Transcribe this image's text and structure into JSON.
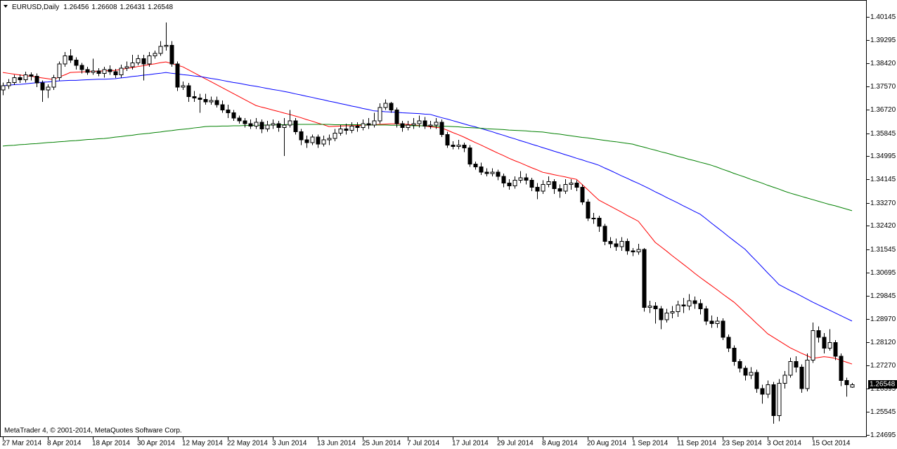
{
  "chart_data": {
    "type": "candlestick",
    "title": "EURUSD,Daily",
    "footer": "MetaTrader 4, © 2001-2014, MetaQuotes Software Corp.",
    "up_color": "#ffffff",
    "down_color": "#000000",
    "categories": [
      "27 Mar 2014",
      null,
      null,
      null,
      null,
      null,
      null,
      null,
      "8 Apr 2014",
      null,
      null,
      null,
      null,
      null,
      null,
      null,
      "18 Apr 2014",
      null,
      null,
      null,
      null,
      null,
      null,
      null,
      "30 Apr 2014",
      null,
      null,
      null,
      null,
      null,
      null,
      null,
      "12 May 2014",
      null,
      null,
      null,
      null,
      null,
      null,
      null,
      "22 May 2014",
      null,
      null,
      null,
      null,
      null,
      null,
      null,
      "3 Jun 2014",
      null,
      null,
      null,
      null,
      null,
      null,
      null,
      "13 Jun 2014",
      null,
      null,
      null,
      null,
      null,
      null,
      null,
      "25 Jun 2014",
      null,
      null,
      null,
      null,
      null,
      null,
      null,
      "7 Jul 2014",
      null,
      null,
      null,
      null,
      null,
      null,
      null,
      "17 Jul 2014",
      null,
      null,
      null,
      null,
      null,
      null,
      null,
      "29 Jul 2014",
      null,
      null,
      null,
      null,
      null,
      null,
      null,
      "8 Aug 2014",
      null,
      null,
      null,
      null,
      null,
      null,
      null,
      "20 Aug 2014",
      null,
      null,
      null,
      null,
      null,
      null,
      null,
      "1 Sep 2014",
      null,
      null,
      null,
      null,
      null,
      null,
      null,
      "11 Sep 2014",
      null,
      null,
      null,
      null,
      null,
      null,
      null,
      "23 Sep 2014",
      null,
      null,
      null,
      null,
      null,
      null,
      null,
      "3 Oct 2014",
      null,
      null,
      null,
      null,
      null,
      null,
      null,
      "15 Oct 2014",
      null,
      null,
      null,
      null,
      null,
      null,
      null
    ],
    "open": [
      1.3745,
      1.376,
      1.3772,
      1.379,
      1.3782,
      1.38,
      1.3795,
      1.377,
      1.3745,
      1.3755,
      1.379,
      1.384,
      1.387,
      1.3855,
      1.3835,
      1.382,
      1.381,
      1.3815,
      1.3805,
      1.382,
      1.3812,
      1.38,
      1.3825,
      1.383,
      1.3845,
      1.386,
      1.384,
      1.387,
      1.388,
      1.3905,
      1.391,
      1.384,
      1.3755,
      1.376,
      1.372,
      1.3715,
      1.371,
      1.37,
      1.3705,
      1.369,
      1.367,
      1.366,
      1.364,
      1.363,
      1.362,
      1.361,
      1.3625,
      1.36,
      1.3615,
      1.362,
      1.3605,
      1.3615,
      1.363,
      1.359,
      1.356,
      1.355,
      1.357,
      1.3545,
      1.356,
      1.3565,
      1.3585,
      1.36,
      1.3595,
      1.361,
      1.3605,
      1.362,
      1.3615,
      1.363,
      1.368,
      1.3695,
      1.367,
      1.362,
      1.3605,
      1.3615,
      1.362,
      1.363,
      1.361,
      1.3615,
      1.3625,
      1.358,
      1.354,
      1.3535,
      1.354,
      1.353,
      1.347,
      1.346,
      1.344,
      1.3435,
      1.344,
      1.3425,
      1.34,
      1.339,
      1.341,
      1.342,
      1.341,
      1.3385,
      1.337,
      1.3395,
      1.3405,
      1.338,
      1.337,
      1.3395,
      1.34,
      1.3385,
      1.333,
      1.327,
      1.327,
      1.324,
      1.3185,
      1.3175,
      1.3165,
      1.3185,
      1.315,
      1.3145,
      1.3155,
      1.294,
      1.2945,
      1.2935,
      1.2895,
      1.292,
      1.2925,
      1.295,
      1.2945,
      1.2965,
      1.2955,
      1.2935,
      1.289,
      1.288,
      1.289,
      1.283,
      1.279,
      1.274,
      1.2715,
      1.269,
      1.27,
      1.264,
      1.262,
      1.2655,
      1.254,
      1.266,
      1.269,
      1.274,
      1.272,
      1.264,
      1.2745,
      1.2855,
      1.283,
      1.279,
      1.281,
      1.276,
      1.267,
      1.26456
    ],
    "high": [
      1.3772,
      1.3785,
      1.38,
      1.3802,
      1.3812,
      1.381,
      1.3805,
      1.378,
      1.3765,
      1.38,
      1.385,
      1.3885,
      1.3895,
      1.3865,
      1.3845,
      1.383,
      1.386,
      1.3825,
      1.383,
      1.3835,
      1.3822,
      1.3838,
      1.385,
      1.3875,
      1.3875,
      1.3875,
      1.3885,
      1.389,
      1.3925,
      1.3994,
      1.3925,
      1.385,
      1.3775,
      1.377,
      1.374,
      1.373,
      1.373,
      1.372,
      1.372,
      1.3705,
      1.369,
      1.367,
      1.365,
      1.364,
      1.3635,
      1.364,
      1.3635,
      1.363,
      1.3635,
      1.363,
      1.364,
      1.367,
      1.364,
      1.36,
      1.3575,
      1.358,
      1.358,
      1.3575,
      1.358,
      1.36,
      1.3615,
      1.362,
      1.3625,
      1.3625,
      1.3635,
      1.364,
      1.366,
      1.3695,
      1.371,
      1.37,
      1.368,
      1.363,
      1.363,
      1.364,
      1.365,
      1.3645,
      1.363,
      1.364,
      1.3635,
      1.359,
      1.3555,
      1.356,
      1.355,
      1.354,
      1.348,
      1.3475,
      1.3455,
      1.3455,
      1.345,
      1.3435,
      1.3415,
      1.3425,
      1.3445,
      1.3435,
      1.342,
      1.34,
      1.341,
      1.3425,
      1.3415,
      1.3395,
      1.3415,
      1.3415,
      1.341,
      1.3395,
      1.334,
      1.329,
      1.328,
      1.325,
      1.32,
      1.3195,
      1.32,
      1.3195,
      1.316,
      1.3175,
      1.316,
      1.2965,
      1.296,
      1.2945,
      1.2935,
      1.2945,
      1.2965,
      1.2975,
      1.299,
      1.298,
      1.297,
      1.2945,
      1.291,
      1.2905,
      1.29,
      1.284,
      1.28,
      1.275,
      1.2725,
      1.272,
      1.271,
      1.2655,
      1.267,
      1.2665,
      1.2675,
      1.2705,
      1.2755,
      1.276,
      1.273,
      1.277,
      1.2885,
      1.287,
      1.2845,
      1.286,
      1.282,
      1.277,
      1.268,
      1.26608
    ],
    "low": [
      1.3725,
      1.3748,
      1.3762,
      1.377,
      1.3772,
      1.378,
      1.3755,
      1.37,
      1.3715,
      1.3745,
      1.378,
      1.383,
      1.3845,
      1.382,
      1.3805,
      1.38,
      1.38,
      1.3795,
      1.379,
      1.38,
      1.3788,
      1.379,
      1.3815,
      1.382,
      1.3835,
      1.378,
      1.383,
      1.386,
      1.387,
      1.389,
      1.383,
      1.374,
      1.3745,
      1.37,
      1.37,
      1.366,
      1.369,
      1.369,
      1.368,
      1.366,
      1.364,
      1.363,
      1.362,
      1.3605,
      1.36,
      1.36,
      1.3585,
      1.359,
      1.36,
      1.359,
      1.35,
      1.3605,
      1.358,
      1.354,
      1.353,
      1.354,
      1.353,
      1.3535,
      1.354,
      1.3555,
      1.3575,
      1.358,
      1.3585,
      1.359,
      1.3595,
      1.36,
      1.3605,
      1.362,
      1.367,
      1.366,
      1.3605,
      1.359,
      1.3595,
      1.36,
      1.3605,
      1.36,
      1.36,
      1.36,
      1.357,
      1.353,
      1.3525,
      1.3525,
      1.3515,
      1.346,
      1.345,
      1.343,
      1.3425,
      1.3425,
      1.341,
      1.3385,
      1.3375,
      1.338,
      1.34,
      1.3395,
      1.337,
      1.334,
      1.336,
      1.3385,
      1.336,
      1.3345,
      1.336,
      1.3375,
      1.337,
      1.332,
      1.326,
      1.325,
      1.322,
      1.317,
      1.316,
      1.315,
      1.315,
      1.3135,
      1.313,
      1.3135,
      1.2925,
      1.292,
      1.288,
      1.286,
      1.2885,
      1.29,
      1.2905,
      1.292,
      1.293,
      1.2935,
      1.2915,
      1.2875,
      1.2865,
      1.2865,
      1.282,
      1.2775,
      1.2725,
      1.27,
      1.267,
      1.2675,
      1.2625,
      1.2585,
      1.2605,
      1.251,
      1.252,
      1.264,
      1.268,
      1.27,
      1.2625,
      1.263,
      1.2735,
      1.281,
      1.277,
      1.278,
      1.2745,
      1.265,
      1.261,
      1.26431
    ],
    "close": [
      1.376,
      1.3772,
      1.379,
      1.3782,
      1.38,
      1.3795,
      1.377,
      1.3745,
      1.3755,
      1.379,
      1.384,
      1.387,
      1.3855,
      1.3835,
      1.382,
      1.381,
      1.3815,
      1.3805,
      1.382,
      1.3812,
      1.38,
      1.3825,
      1.383,
      1.3845,
      1.386,
      1.384,
      1.387,
      1.388,
      1.3905,
      1.391,
      1.384,
      1.3755,
      1.376,
      1.372,
      1.3715,
      1.371,
      1.37,
      1.3705,
      1.369,
      1.367,
      1.366,
      1.364,
      1.363,
      1.362,
      1.361,
      1.3625,
      1.36,
      1.3615,
      1.362,
      1.3605,
      1.3615,
      1.363,
      1.359,
      1.356,
      1.355,
      1.357,
      1.3545,
      1.356,
      1.3565,
      1.3585,
      1.36,
      1.3595,
      1.361,
      1.3605,
      1.362,
      1.3615,
      1.363,
      1.368,
      1.3695,
      1.367,
      1.362,
      1.3605,
      1.3615,
      1.362,
      1.363,
      1.361,
      1.3615,
      1.3625,
      1.358,
      1.354,
      1.3535,
      1.354,
      1.353,
      1.347,
      1.346,
      1.344,
      1.3435,
      1.344,
      1.3425,
      1.34,
      1.339,
      1.341,
      1.342,
      1.341,
      1.3385,
      1.337,
      1.3395,
      1.3405,
      1.338,
      1.337,
      1.3395,
      1.34,
      1.3385,
      1.333,
      1.327,
      1.327,
      1.324,
      1.3185,
      1.3175,
      1.3165,
      1.3185,
      1.315,
      1.3145,
      1.3155,
      1.294,
      1.2945,
      1.2935,
      1.2895,
      1.292,
      1.2925,
      1.295,
      1.2945,
      1.2965,
      1.2955,
      1.2935,
      1.289,
      1.288,
      1.289,
      1.283,
      1.279,
      1.274,
      1.2715,
      1.269,
      1.27,
      1.264,
      1.262,
      1.2655,
      1.254,
      1.266,
      1.269,
      1.274,
      1.272,
      1.264,
      1.2745,
      1.2855,
      1.283,
      1.279,
      1.281,
      1.276,
      1.267,
      1.2655,
      1.26548
    ],
    "series": [
      {
        "color": "#ff0000",
        "values": [
          1.3809,
          1.3806,
          1.3803,
          1.38,
          1.3797,
          1.3795,
          1.3792,
          1.3789,
          1.3786,
          1.3783,
          1.3792,
          1.38,
          1.3809,
          1.381,
          1.3811,
          1.3812,
          1.3813,
          1.3814,
          1.3815,
          1.3816,
          1.3817,
          1.382,
          1.3824,
          1.3827,
          1.3831,
          1.3834,
          1.3838,
          1.3841,
          1.3845,
          1.3848,
          1.3842,
          1.3836,
          1.383,
          1.3819,
          1.3808,
          1.3797,
          1.3786,
          1.3775,
          1.3764,
          1.3753,
          1.3742,
          1.3731,
          1.372,
          1.3709,
          1.3698,
          1.3687,
          1.3681,
          1.3676,
          1.367,
          1.3665,
          1.3659,
          1.3654,
          1.3648,
          1.3642,
          1.3635,
          1.3629,
          1.3622,
          1.3616,
          1.3609,
          1.361,
          1.3611,
          1.3612,
          1.3612,
          1.3613,
          1.3614,
          1.3615,
          1.3616,
          1.3617,
          1.3618,
          1.3619,
          1.3619,
          1.3618,
          1.3617,
          1.3615,
          1.3613,
          1.3611,
          1.3608,
          1.3606,
          1.3604,
          1.3596,
          1.3587,
          1.3579,
          1.357,
          1.356,
          1.355,
          1.3541,
          1.3531,
          1.3521,
          1.3511,
          1.3502,
          1.3492,
          1.3483,
          1.3475,
          1.3466,
          1.3457,
          1.3449,
          1.344,
          1.3436,
          1.3431,
          1.3427,
          1.3423,
          1.3418,
          1.3414,
          1.3395,
          1.3376,
          1.3356,
          1.3337,
          1.3326,
          1.3315,
          1.3304,
          1.3293,
          1.3281,
          1.327,
          1.3259,
          1.3233,
          1.3207,
          1.3181,
          1.3165,
          1.3149,
          1.3132,
          1.3116,
          1.31,
          1.3084,
          1.3067,
          1.3051,
          1.3036,
          1.3021,
          1.3006,
          1.299,
          1.2975,
          1.296,
          1.2941,
          1.2921,
          1.2902,
          1.2882,
          1.2863,
          1.2843,
          1.283,
          1.2817,
          1.2804,
          1.2791,
          1.2781,
          1.2771,
          1.2762,
          1.2752,
          1.2755,
          1.2758,
          1.2756,
          1.2752,
          1.2745,
          1.2738,
          1.2731
        ]
      },
      {
        "color": "#0000ff",
        "values": [
          1.376,
          1.3762,
          1.3764,
          1.3765,
          1.3767,
          1.3769,
          1.3771,
          1.3773,
          1.3774,
          1.3776,
          1.3778,
          1.3779,
          1.378,
          1.378,
          1.3781,
          1.3782,
          1.3783,
          1.3784,
          1.3784,
          1.3785,
          1.3786,
          1.3789,
          1.3791,
          1.3794,
          1.3796,
          1.3799,
          1.3801,
          1.3804,
          1.3806,
          1.3809,
          1.3806,
          1.3804,
          1.3801,
          1.3799,
          1.3796,
          1.3794,
          1.3791,
          1.3787,
          1.3784,
          1.378,
          1.3776,
          1.3772,
          1.3769,
          1.3765,
          1.3761,
          1.3758,
          1.3754,
          1.375,
          1.3746,
          1.3743,
          1.3739,
          1.3735,
          1.373,
          1.3726,
          1.3721,
          1.3717,
          1.3712,
          1.3708,
          1.3703,
          1.3699,
          1.3694,
          1.369,
          1.3685,
          1.3681,
          1.3676,
          1.3672,
          1.3667,
          1.3666,
          1.3664,
          1.3663,
          1.3662,
          1.366,
          1.3659,
          1.3658,
          1.3657,
          1.3655,
          1.3654,
          1.3648,
          1.3642,
          1.3637,
          1.3631,
          1.3625,
          1.3619,
          1.3613,
          1.3608,
          1.3602,
          1.3596,
          1.359,
          1.3583,
          1.3577,
          1.357,
          1.3564,
          1.3557,
          1.3551,
          1.3544,
          1.3538,
          1.3531,
          1.3525,
          1.3518,
          1.3512,
          1.3505,
          1.3499,
          1.3492,
          1.3486,
          1.3479,
          1.3473,
          1.3466,
          1.3456,
          1.3447,
          1.3437,
          1.3427,
          1.3418,
          1.3408,
          1.3399,
          1.3389,
          1.3379,
          1.3368,
          1.3358,
          1.3347,
          1.3337,
          1.3327,
          1.3316,
          1.3306,
          1.3295,
          1.3285,
          1.3269,
          1.3252,
          1.3236,
          1.322,
          1.3203,
          1.3187,
          1.3171,
          1.3155,
          1.3133,
          1.3112,
          1.309,
          1.3068,
          1.3047,
          1.3025,
          1.3014,
          1.3003,
          1.2993,
          1.2982,
          1.2971,
          1.296,
          1.295,
          1.294,
          1.293,
          1.292,
          1.291,
          1.29,
          1.289
        ]
      },
      {
        "color": "#008000",
        "values": [
          1.3537,
          1.3539,
          1.354,
          1.3542,
          1.3543,
          1.3545,
          1.3546,
          1.3548,
          1.355,
          1.3551,
          1.3553,
          1.3554,
          1.3556,
          1.3557,
          1.3559,
          1.3561,
          1.3562,
          1.3564,
          1.3565,
          1.3567,
          1.357,
          1.3572,
          1.3575,
          1.3577,
          1.358,
          1.3582,
          1.3584,
          1.3587,
          1.3589,
          1.3592,
          1.3594,
          1.3597,
          1.3599,
          1.3601,
          1.3604,
          1.3606,
          1.3609,
          1.361,
          1.361,
          1.3611,
          1.3611,
          1.3612,
          1.3612,
          1.3613,
          1.3613,
          1.3614,
          1.3614,
          1.3615,
          1.3615,
          1.3616,
          1.3616,
          1.3617,
          1.3617,
          1.3617,
          1.3617,
          1.3617,
          1.3617,
          1.3617,
          1.3617,
          1.3616,
          1.3616,
          1.3616,
          1.3616,
          1.3616,
          1.3616,
          1.3615,
          1.3615,
          1.3615,
          1.3615,
          1.3614,
          1.3614,
          1.3614,
          1.3614,
          1.3612,
          1.3612,
          1.3612,
          1.3612,
          1.361,
          1.361,
          1.361,
          1.3609,
          1.3608,
          1.3606,
          1.3605,
          1.3604,
          1.3603,
          1.3601,
          1.36,
          1.3599,
          1.3598,
          1.3596,
          1.3595,
          1.3594,
          1.3593,
          1.3591,
          1.359,
          1.3589,
          1.3586,
          1.3583,
          1.3581,
          1.3578,
          1.3575,
          1.3572,
          1.3569,
          1.3567,
          1.3564,
          1.3561,
          1.3558,
          1.3555,
          1.3553,
          1.355,
          1.3547,
          1.3544,
          1.3538,
          1.3533,
          1.3527,
          1.3522,
          1.3516,
          1.3511,
          1.3505,
          1.3499,
          1.3494,
          1.3488,
          1.3483,
          1.3477,
          1.3472,
          1.3466,
          1.3459,
          1.3451,
          1.3444,
          1.3436,
          1.3429,
          1.3422,
          1.3414,
          1.3407,
          1.34,
          1.3392,
          1.3385,
          1.3378,
          1.337,
          1.3363,
          1.3357,
          1.3351,
          1.3345,
          1.3339,
          1.3333,
          1.3327,
          1.3321,
          1.3316,
          1.331,
          1.3304,
          1.3298
        ]
      }
    ],
    "ylim": [
      1.2461,
      1.4077
    ],
    "yticks": [
      1.40145,
      1.39295,
      {
        "value": 1.3842,
        "label": "1.38420"
      },
      {
        "value": 1.3757,
        "label": "1.37570"
      },
      {
        "value": 1.3672,
        "label": "1.36720"
      },
      1.35845,
      1.34995,
      1.34145,
      {
        "value": 1.3327,
        "label": "1.33270"
      },
      {
        "value": 1.3242,
        "label": "1.32420"
      },
      1.31545,
      1.30695,
      1.29845,
      {
        "value": 1.2897,
        "label": "1.28970"
      },
      {
        "value": 1.2812,
        "label": "1.28120"
      },
      {
        "value": 1.2727,
        "label": "1.27270"
      },
      1.26395,
      1.25545,
      1.24695
    ]
  }
}
